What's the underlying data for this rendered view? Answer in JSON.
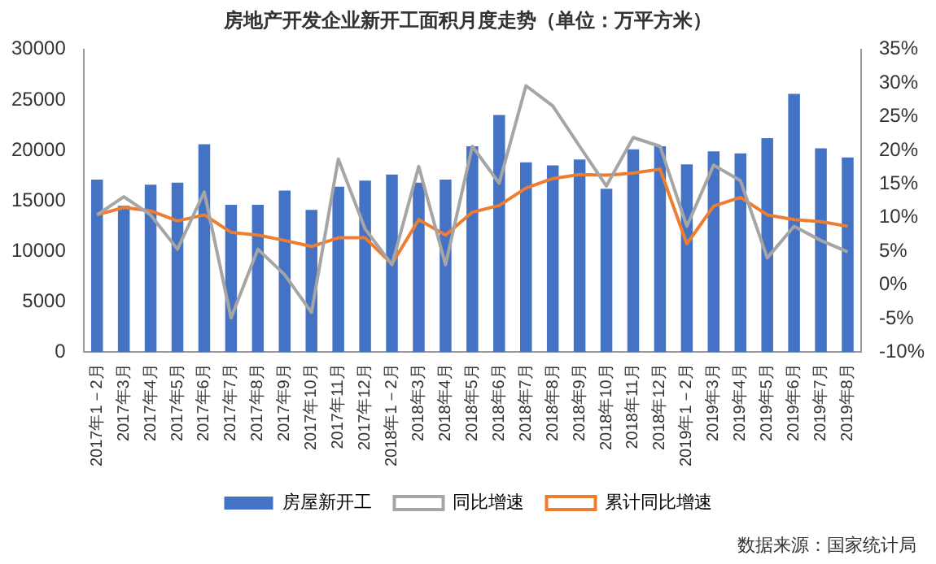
{
  "chart_data": {
    "type": "bar",
    "title": "房地产开发企业新开工面积月度走势（单位：万平方米）",
    "categories": [
      "2017年1－2月",
      "2017年3月",
      "2017年4月",
      "2017年5月",
      "2017年6月",
      "2017年7月",
      "2017年8月",
      "2017年9月",
      "2017年10月",
      "2017年11月",
      "2017年12月",
      "2018年1－2月",
      "2018年3月",
      "2018年4月",
      "2018年5月",
      "2018年6月",
      "2018年7月",
      "2018年8月",
      "2018年9月",
      "2018年10月",
      "2018年11月",
      "2018年12月",
      "2019年1－2月",
      "2019年3月",
      "2019年4月",
      "2019年5月",
      "2019年6月",
      "2019年7月",
      "2019年8月"
    ],
    "series": [
      {
        "name": "房屋新开工",
        "color": "#4472c4",
        "values": [
          17100,
          14500,
          16600,
          16800,
          20600,
          14600,
          14600,
          16000,
          14100,
          16400,
          17000,
          17600,
          16800,
          17100,
          20400,
          23500,
          18800,
          18500,
          19100,
          16200,
          20100,
          20400,
          18600,
          19900,
          19700,
          21200,
          25600,
          20200,
          19300
        ]
      },
      {
        "name": "同比增速",
        "type": "line",
        "axis": "y2",
        "color": "#a5a5a5",
        "values": [
          10.4,
          13.1,
          10.4,
          5.3,
          13.8,
          -4.9,
          5.3,
          1.5,
          -4.1,
          18.7,
          8.3,
          3.0,
          17.6,
          3.0,
          20.6,
          15.1,
          29.6,
          26.6,
          20.6,
          14.7,
          21.9,
          20.6,
          8.7,
          17.8,
          15.5,
          4.0,
          8.7,
          6.6,
          4.9
        ]
      },
      {
        "name": "累计同比增速",
        "type": "line",
        "axis": "y2",
        "color": "#ed7d31",
        "values": [
          10.4,
          11.5,
          11.0,
          9.5,
          10.4,
          7.8,
          7.4,
          6.6,
          5.7,
          7.0,
          7.0,
          3.1,
          9.7,
          7.4,
          10.8,
          11.8,
          14.4,
          15.8,
          16.4,
          16.3,
          16.6,
          17.2,
          6.1,
          11.7,
          13.0,
          10.4,
          9.7,
          9.4,
          8.7
        ]
      }
    ],
    "ylim": [
      0,
      30000
    ],
    "yticks": [
      0,
      5000,
      10000,
      15000,
      20000,
      25000,
      30000
    ],
    "y2lim": [
      -10,
      35
    ],
    "y2ticks": [
      {
        "value": -10,
        "label": "-10%"
      },
      {
        "value": -5,
        "label": "-5%"
      },
      {
        "value": 0,
        "label": "0%"
      },
      {
        "value": 5,
        "label": "5%"
      },
      {
        "value": 10,
        "label": "10%"
      },
      {
        "value": 15,
        "label": "15%"
      },
      {
        "value": 20,
        "label": "20%"
      },
      {
        "value": 25,
        "label": "25%"
      },
      {
        "value": 30,
        "label": "30%"
      },
      {
        "value": 35,
        "label": "35%"
      }
    ],
    "legend": "bottom",
    "grid": false,
    "marker": "none",
    "annotations": [
      "数据来源：国家统计局"
    ]
  }
}
